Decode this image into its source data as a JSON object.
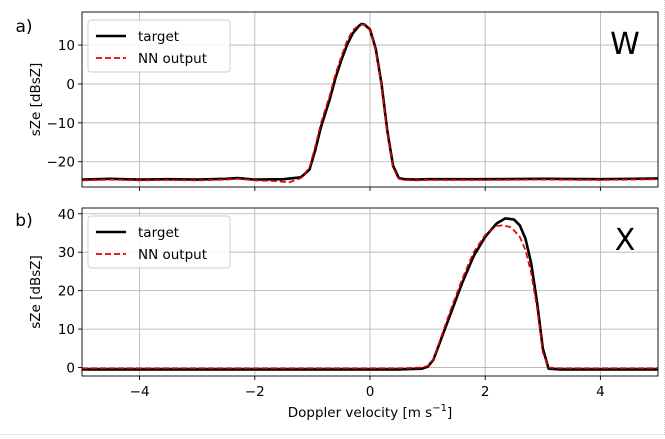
{
  "chart_data": [
    {
      "type": "line",
      "panel_label": "a)",
      "band_label": "W",
      "ylabel": "sZe [dBsZ]",
      "xlabel": "",
      "xlim": [
        -5,
        5
      ],
      "ylim": [
        -26.5,
        18.5
      ],
      "xticks": [
        -4,
        -2,
        0,
        2,
        4
      ],
      "xtick_labels": [
        "",
        "",
        "",
        "",
        ""
      ],
      "yticks": [
        10,
        0,
        -10,
        -20
      ],
      "ytick_labels": [
        "10",
        "0",
        "−10",
        "−20"
      ],
      "grid": true,
      "legend": {
        "position": "top-left",
        "entries": [
          "target",
          "NN output"
        ]
      },
      "series": [
        {
          "name": "target",
          "color": "#000000",
          "style": "solid",
          "x": [
            -5.0,
            -4.5,
            -4.0,
            -3.5,
            -3.0,
            -2.5,
            -2.3,
            -2.0,
            -1.5,
            -1.2,
            -1.05,
            -0.95,
            -0.85,
            -0.7,
            -0.6,
            -0.5,
            -0.4,
            -0.3,
            -0.2,
            -0.15,
            -0.1,
            0.0,
            0.1,
            0.2,
            0.3,
            0.4,
            0.5,
            0.6,
            0.8,
            1.0,
            2.0,
            3.0,
            4.0,
            5.0
          ],
          "y": [
            -24.6,
            -24.4,
            -24.6,
            -24.5,
            -24.6,
            -24.4,
            -24.2,
            -24.6,
            -24.5,
            -24.0,
            -22.0,
            -17.0,
            -11.0,
            -4.0,
            1.5,
            6.0,
            10.0,
            13.0,
            14.8,
            15.4,
            15.3,
            14.0,
            9.0,
            0.0,
            -12.0,
            -21.0,
            -24.2,
            -24.5,
            -24.6,
            -24.5,
            -24.5,
            -24.4,
            -24.5,
            -24.3
          ]
        },
        {
          "name": "NN output",
          "color": "#e00000",
          "style": "dashed",
          "x": [
            -5.0,
            -4.5,
            -4.0,
            -3.5,
            -3.0,
            -2.5,
            -2.3,
            -2.0,
            -1.6,
            -1.4,
            -1.2,
            -1.05,
            -0.95,
            -0.85,
            -0.7,
            -0.6,
            -0.5,
            -0.4,
            -0.3,
            -0.2,
            -0.15,
            -0.1,
            0.0,
            0.1,
            0.2,
            0.3,
            0.4,
            0.5,
            0.6,
            0.8,
            1.0,
            2.0,
            3.0,
            4.0,
            5.0
          ],
          "y": [
            -24.8,
            -24.6,
            -24.8,
            -24.7,
            -24.8,
            -24.6,
            -24.4,
            -24.8,
            -25.0,
            -25.3,
            -24.2,
            -21.5,
            -16.0,
            -10.0,
            -3.0,
            2.5,
            7.0,
            11.0,
            13.8,
            15.0,
            15.3,
            15.2,
            13.8,
            8.5,
            -0.5,
            -12.5,
            -21.5,
            -24.4,
            -24.7,
            -24.8,
            -24.7,
            -24.7,
            -24.6,
            -24.7,
            -24.5
          ]
        }
      ]
    },
    {
      "type": "line",
      "panel_label": "b)",
      "band_label": "X",
      "ylabel": "sZe [dBsZ]",
      "xlabel": "Doppler velocity [m s",
      "xlabel_sup": "−1",
      "xlabel_end": "]",
      "xlim": [
        -5,
        5
      ],
      "ylim": [
        -2.2,
        41.5
      ],
      "xticks": [
        -4,
        -2,
        0,
        2,
        4
      ],
      "xtick_labels": [
        "−4",
        "−2",
        "0",
        "2",
        "4"
      ],
      "yticks": [
        40,
        30,
        20,
        10,
        0
      ],
      "ytick_labels": [
        "40",
        "30",
        "20",
        "10",
        "0"
      ],
      "grid": true,
      "legend": {
        "position": "top-left",
        "entries": [
          "target",
          "NN output"
        ]
      },
      "series": [
        {
          "name": "target",
          "color": "#000000",
          "style": "solid",
          "x": [
            -5.0,
            -3.0,
            -1.0,
            0.5,
            0.9,
            1.0,
            1.1,
            1.2,
            1.4,
            1.6,
            1.8,
            2.0,
            2.2,
            2.35,
            2.5,
            2.6,
            2.7,
            2.8,
            2.9,
            3.0,
            3.1,
            3.3,
            4.0,
            5.0
          ],
          "y": [
            -0.5,
            -0.5,
            -0.5,
            -0.5,
            -0.3,
            0.2,
            2.0,
            6.0,
            14.0,
            22.0,
            29.0,
            34.0,
            37.5,
            38.8,
            38.5,
            37.0,
            33.5,
            27.0,
            17.0,
            5.0,
            -0.3,
            -0.5,
            -0.5,
            -0.5
          ]
        },
        {
          "name": "NN output",
          "color": "#e00000",
          "style": "dashed",
          "x": [
            -5.0,
            -3.0,
            -1.0,
            0.5,
            0.9,
            1.0,
            1.1,
            1.2,
            1.4,
            1.6,
            1.8,
            2.0,
            2.2,
            2.3,
            2.45,
            2.6,
            2.7,
            2.8,
            2.9,
            3.0,
            3.1,
            3.3,
            4.0,
            5.0
          ],
          "y": [
            -0.2,
            -0.2,
            -0.2,
            -0.2,
            0.0,
            0.4,
            2.2,
            6.5,
            15.0,
            23.0,
            30.0,
            34.5,
            36.8,
            37.0,
            36.5,
            34.0,
            30.5,
            24.5,
            15.5,
            4.0,
            0.0,
            -0.2,
            -0.2,
            -0.2
          ]
        }
      ]
    }
  ]
}
